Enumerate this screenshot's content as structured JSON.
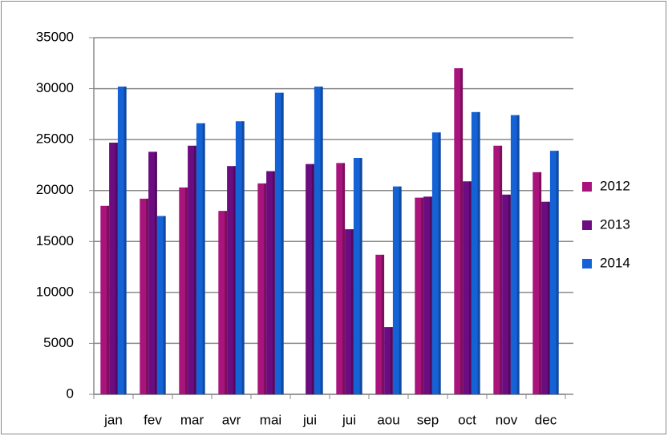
{
  "chart_data": {
    "type": "bar",
    "categories": [
      "jan",
      "fev",
      "mar",
      "avr",
      "mai",
      "jui",
      "jui",
      "aou",
      "sep",
      "oct",
      "nov",
      "dec"
    ],
    "series": [
      {
        "name": "2012",
        "color": "#a8137c",
        "values": [
          18500,
          19200,
          20300,
          18000,
          20700,
          null,
          22700,
          13700,
          19300,
          32000,
          24400,
          21800
        ]
      },
      {
        "name": "2013",
        "color": "#6b0c80",
        "values": [
          24700,
          23800,
          24400,
          22400,
          21900,
          22600,
          16200,
          6600,
          19400,
          20900,
          19600,
          18900
        ]
      },
      {
        "name": "2014",
        "color": "#1462d6",
        "values": [
          30200,
          17500,
          26600,
          26800,
          29600,
          30200,
          23200,
          20400,
          25700,
          27700,
          27400,
          23900
        ]
      }
    ],
    "ylim": [
      0,
      35000
    ],
    "yticks": [
      0,
      5000,
      10000,
      15000,
      20000,
      25000,
      30000,
      35000
    ],
    "grid": true,
    "legend": "right"
  }
}
